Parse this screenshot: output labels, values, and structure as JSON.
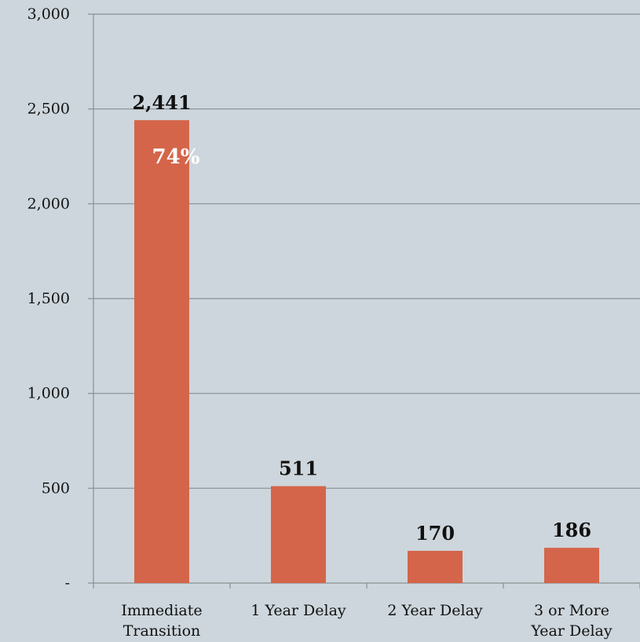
{
  "colors": {
    "background": "#cdd6dc",
    "bar": "#d4654a",
    "gridline": "#8a8f93",
    "axis": "#8a8f93",
    "text": "#111111",
    "annotation_text": "#ffffff"
  },
  "chart_data": {
    "type": "bar",
    "categories": [
      [
        "Immediate",
        "Transition"
      ],
      [
        "1 Year Delay"
      ],
      [
        "2 Year Delay"
      ],
      [
        "3 or More",
        "Year Delay"
      ]
    ],
    "values": [
      2441,
      511,
      170,
      186
    ],
    "data_labels": [
      "2,441",
      "511",
      "170",
      "186"
    ],
    "annotations": [
      {
        "category_index": 0,
        "text": "74%"
      }
    ],
    "ylim": [
      0,
      3000
    ],
    "yticks": [
      {
        "value": 0,
        "label": "-"
      },
      {
        "value": 500,
        "label": "500"
      },
      {
        "value": 1000,
        "label": "1,000"
      },
      {
        "value": 1500,
        "label": "1,500"
      },
      {
        "value": 2000,
        "label": "2,000"
      },
      {
        "value": 2500,
        "label": "2,500"
      },
      {
        "value": 3000,
        "label": "3,000"
      }
    ],
    "grid": true,
    "legend": "none",
    "title": "",
    "xlabel": "",
    "ylabel": ""
  }
}
